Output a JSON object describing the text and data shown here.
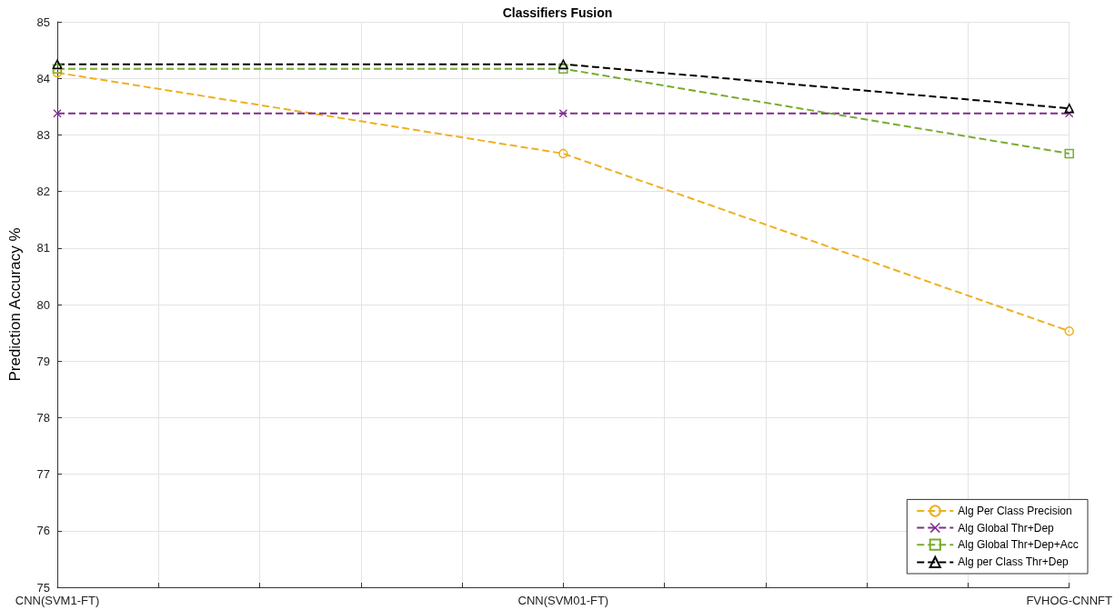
{
  "chart_data": {
    "type": "line",
    "title": "Classifiers Fusion",
    "ylabel": "Prediction Accuracy %",
    "categories": [
      "CNN(SVM1-FT)",
      "CNN(SVM01-FT)",
      "FVHOG-CNNFT"
    ],
    "ylim": [
      75,
      85
    ],
    "yticks": [
      75,
      76,
      77,
      78,
      79,
      80,
      81,
      82,
      83,
      84,
      85
    ],
    "grid": true,
    "legend": "bottom right",
    "line_style": "dashed",
    "series": [
      {
        "name": "Alg Per Class Precision",
        "color": "#edb120",
        "marker": "circle",
        "values": [
          84.1,
          82.67,
          79.53
        ]
      },
      {
        "name": "Alg Global Thr+Dep",
        "color": "#7e2f8e",
        "marker": "cross",
        "values": [
          83.38,
          83.38,
          83.38
        ]
      },
      {
        "name": "Alg Global Thr+Dep+Acc",
        "color": "#77ac30",
        "marker": "square",
        "values": [
          84.17,
          84.17,
          82.67
        ]
      },
      {
        "name": "Alg per Class Thr+Dep",
        "color": "#000000",
        "marker": "triangle",
        "values": [
          84.25,
          84.25,
          83.47
        ]
      }
    ]
  }
}
